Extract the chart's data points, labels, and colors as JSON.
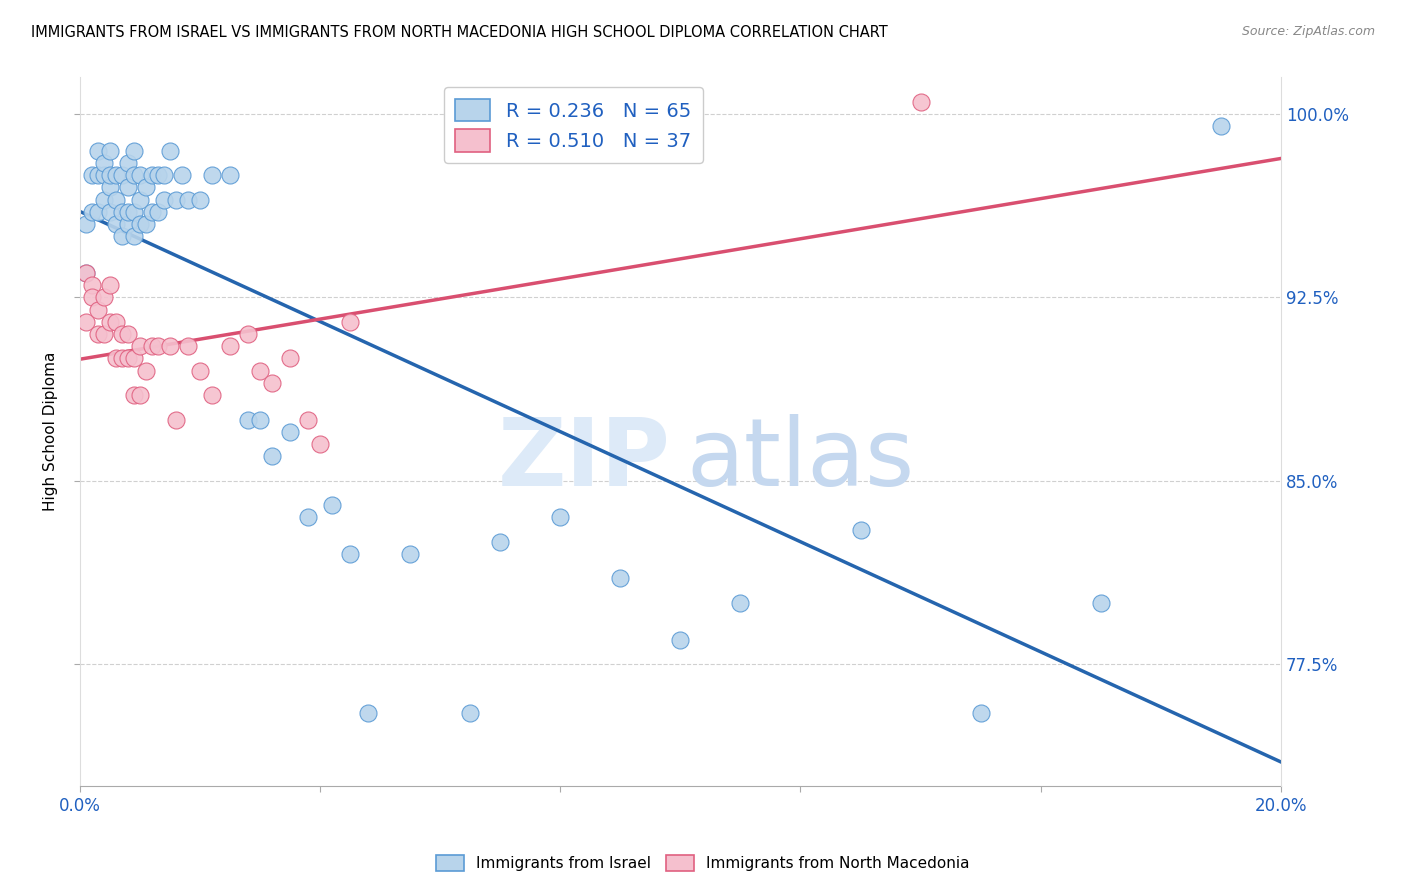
{
  "title": "IMMIGRANTS FROM ISRAEL VS IMMIGRANTS FROM NORTH MACEDONIA HIGH SCHOOL DIPLOMA CORRELATION CHART",
  "source": "Source: ZipAtlas.com",
  "ylabel": "High School Diploma",
  "ytick_labels": [
    "100.0%",
    "92.5%",
    "85.0%",
    "77.5%"
  ],
  "ytick_values": [
    1.0,
    0.925,
    0.85,
    0.775
  ],
  "xlim": [
    0.0,
    0.2
  ],
  "ylim": [
    0.725,
    1.015
  ],
  "israel_R": 0.236,
  "israel_N": 65,
  "macedonia_R": 0.51,
  "macedonia_N": 37,
  "israel_color": "#b8d4eb",
  "macedonia_color": "#f5c0ce",
  "israel_edge_color": "#5b9bd5",
  "macedonia_edge_color": "#e06080",
  "israel_line_color": "#2565ae",
  "macedonia_line_color": "#d94f70",
  "israel_x": [
    0.001,
    0.001,
    0.002,
    0.002,
    0.003,
    0.003,
    0.003,
    0.004,
    0.004,
    0.004,
    0.005,
    0.005,
    0.005,
    0.005,
    0.006,
    0.006,
    0.006,
    0.007,
    0.007,
    0.007,
    0.008,
    0.008,
    0.008,
    0.008,
    0.009,
    0.009,
    0.009,
    0.009,
    0.01,
    0.01,
    0.01,
    0.011,
    0.011,
    0.012,
    0.012,
    0.013,
    0.013,
    0.014,
    0.014,
    0.015,
    0.016,
    0.017,
    0.018,
    0.02,
    0.022,
    0.025,
    0.028,
    0.03,
    0.032,
    0.035,
    0.038,
    0.042,
    0.045,
    0.048,
    0.055,
    0.065,
    0.07,
    0.08,
    0.09,
    0.1,
    0.11,
    0.13,
    0.15,
    0.17,
    0.19
  ],
  "israel_y": [
    0.955,
    0.935,
    0.96,
    0.975,
    0.975,
    0.96,
    0.985,
    0.965,
    0.975,
    0.98,
    0.96,
    0.97,
    0.975,
    0.985,
    0.955,
    0.965,
    0.975,
    0.95,
    0.96,
    0.975,
    0.955,
    0.96,
    0.97,
    0.98,
    0.95,
    0.96,
    0.975,
    0.985,
    0.955,
    0.965,
    0.975,
    0.955,
    0.97,
    0.96,
    0.975,
    0.96,
    0.975,
    0.965,
    0.975,
    0.985,
    0.965,
    0.975,
    0.965,
    0.965,
    0.975,
    0.975,
    0.875,
    0.875,
    0.86,
    0.87,
    0.835,
    0.84,
    0.82,
    0.755,
    0.82,
    0.755,
    0.825,
    0.835,
    0.81,
    0.785,
    0.8,
    0.83,
    0.755,
    0.8,
    0.995
  ],
  "macedonia_x": [
    0.001,
    0.001,
    0.002,
    0.002,
    0.003,
    0.003,
    0.004,
    0.004,
    0.005,
    0.005,
    0.006,
    0.006,
    0.007,
    0.007,
    0.008,
    0.008,
    0.009,
    0.009,
    0.01,
    0.01,
    0.011,
    0.012,
    0.013,
    0.015,
    0.016,
    0.018,
    0.02,
    0.022,
    0.025,
    0.028,
    0.03,
    0.032,
    0.035,
    0.038,
    0.04,
    0.045,
    0.14
  ],
  "macedonia_y": [
    0.935,
    0.915,
    0.93,
    0.925,
    0.92,
    0.91,
    0.925,
    0.91,
    0.93,
    0.915,
    0.915,
    0.9,
    0.91,
    0.9,
    0.91,
    0.9,
    0.9,
    0.885,
    0.905,
    0.885,
    0.895,
    0.905,
    0.905,
    0.905,
    0.875,
    0.905,
    0.895,
    0.885,
    0.905,
    0.91,
    0.895,
    0.89,
    0.9,
    0.875,
    0.865,
    0.915,
    1.005
  ],
  "grid_color": "#d0d0d0",
  "background_color": "#ffffff"
}
